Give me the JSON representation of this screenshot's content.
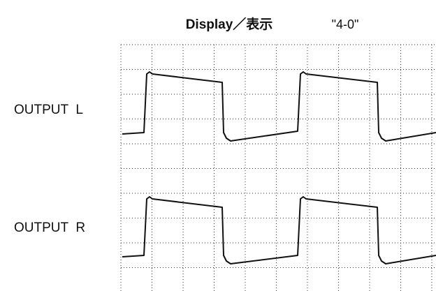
{
  "header": {
    "title": "Display／表示",
    "mode": "\"4-0\""
  },
  "channels": [
    {
      "label": "OUTPUT  L"
    },
    {
      "label": "OUTPUT  R"
    }
  ]
}
